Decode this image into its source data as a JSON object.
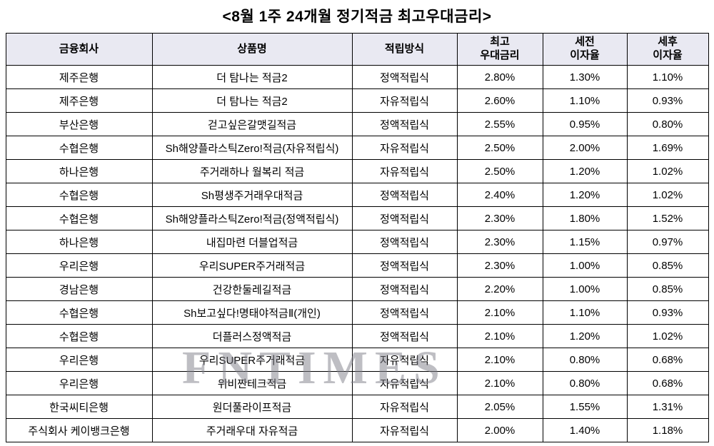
{
  "title": "<8월 1주 24개월 정기적금 최고우대금리>",
  "watermark": "FNTIMES",
  "chart_data": {
    "type": "table",
    "columns": [
      "금융회사",
      "상품명",
      "적립방식",
      "최고\n우대금리",
      "세전\n이자율",
      "세후\n이자율"
    ],
    "rows": [
      [
        "제주은행",
        "더 탐나는 적금2",
        "정액적립식",
        "2.80%",
        "1.30%",
        "1.10%"
      ],
      [
        "제주은행",
        "더 탐나는 적금2",
        "자유적립식",
        "2.60%",
        "1.10%",
        "0.93%"
      ],
      [
        "부산은행",
        "걷고싶은갈맷길적금",
        "정액적립식",
        "2.55%",
        "0.95%",
        "0.80%"
      ],
      [
        "수협은행",
        "Sh해양플라스틱Zero!적금(자유적립식)",
        "자유적립식",
        "2.50%",
        "2.00%",
        "1.69%"
      ],
      [
        "하나은행",
        "주거래하나 월복리 적금",
        "자유적립식",
        "2.50%",
        "1.20%",
        "1.02%"
      ],
      [
        "수협은행",
        "Sh평생주거래우대적금",
        "정액적립식",
        "2.40%",
        "1.20%",
        "1.02%"
      ],
      [
        "수협은행",
        "Sh해양플라스틱Zero!적금(정액적립식)",
        "정액적립식",
        "2.30%",
        "1.80%",
        "1.52%"
      ],
      [
        "하나은행",
        "내집마련 더블업적금",
        "정액적립식",
        "2.30%",
        "1.15%",
        "0.97%"
      ],
      [
        "우리은행",
        "우리SUPER주거래적금",
        "정액적립식",
        "2.30%",
        "1.00%",
        "0.85%"
      ],
      [
        "경남은행",
        "건강한둘레길적금",
        "정액적립식",
        "2.20%",
        "1.00%",
        "0.85%"
      ],
      [
        "수협은행",
        "Sh보고싶다!명태야적금Ⅱ(개인)",
        "정액적립식",
        "2.10%",
        "1.10%",
        "0.93%"
      ],
      [
        "수협은행",
        "더플러스정액적금",
        "정액적립식",
        "2.10%",
        "1.20%",
        "1.02%"
      ],
      [
        "우리은행",
        "우리SUPER주거래적금",
        "자유적립식",
        "2.10%",
        "0.80%",
        "0.68%"
      ],
      [
        "우리은행",
        "위비짠테크적금",
        "자유적립식",
        "2.10%",
        "0.80%",
        "0.68%"
      ],
      [
        "한국씨티은행",
        "원더풀라이프적금",
        "자유적립식",
        "2.05%",
        "1.55%",
        "1.31%"
      ],
      [
        "주식회사 케이뱅크은행",
        "주거래우대 자유적금",
        "자유적립식",
        "2.00%",
        "1.40%",
        "1.18%"
      ]
    ]
  }
}
